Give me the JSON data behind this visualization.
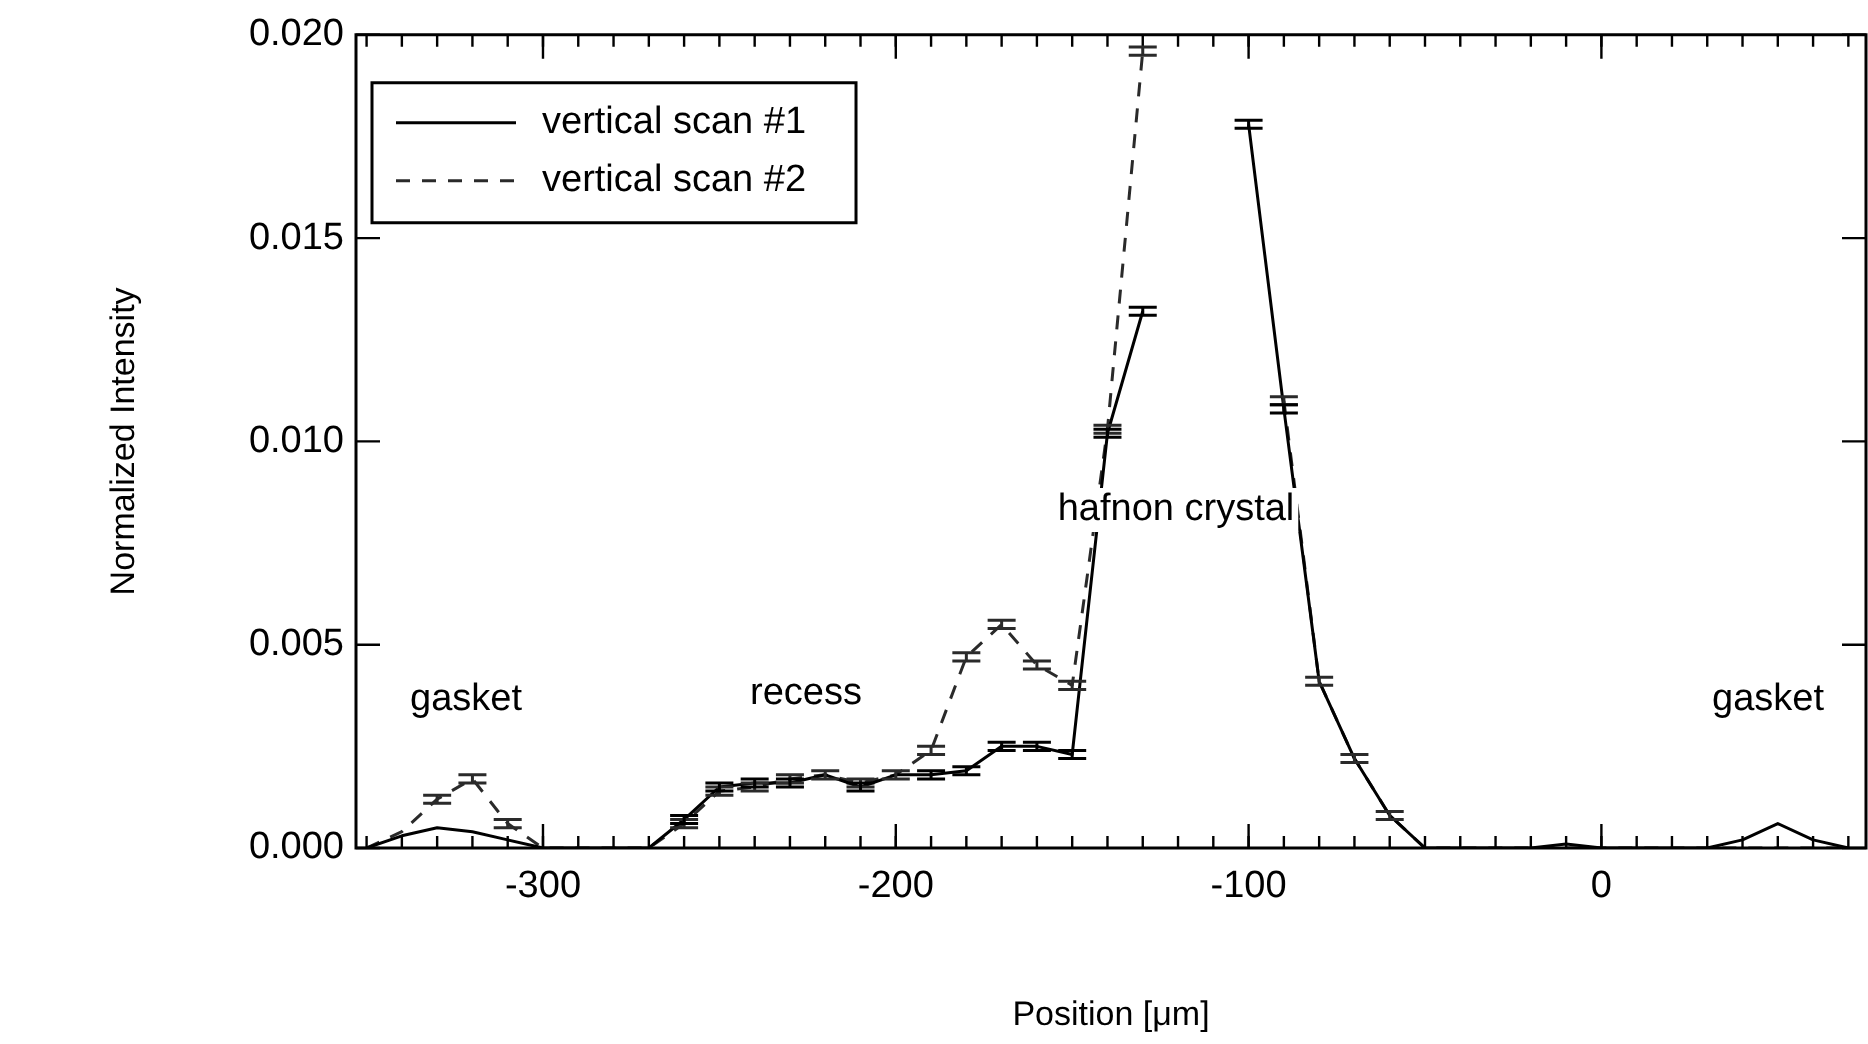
{
  "chart_data": {
    "type": "line",
    "xlabel": "Position [μm]",
    "ylabel": "Normalized Intensity",
    "x": [
      -350,
      -340,
      -330,
      -320,
      -310,
      -300,
      -290,
      -280,
      -270,
      -260,
      -250,
      -240,
      -230,
      -220,
      -210,
      -200,
      -190,
      -180,
      -170,
      -160,
      -150,
      -140,
      -130,
      -120,
      -110,
      -100,
      -90,
      -80,
      -70,
      -60,
      -50,
      -40,
      -30,
      -20,
      -10,
      0,
      10,
      20,
      30,
      40,
      50,
      60,
      70
    ],
    "series": [
      {
        "name": "vertical scan #1",
        "color": "#000000",
        "line_style": "solid",
        "values": [
          0,
          0.0003,
          0.0005,
          0.0004,
          0.0002,
          0,
          0,
          0,
          0,
          0.0007,
          0.0015,
          0.0016,
          0.0016,
          0.0018,
          0.0015,
          0.0018,
          0.0018,
          0.0019,
          0.0025,
          0.0025,
          0.0023,
          0.0102,
          0.0132,
          null,
          null,
          0.0178,
          0.0108,
          0.0041,
          0.0022,
          0.0008,
          0,
          0,
          0,
          0,
          0.0001,
          0,
          0,
          0,
          0,
          0.0002,
          0.0006,
          0.0002,
          0
        ],
        "errors": [
          null,
          null,
          null,
          null,
          null,
          null,
          null,
          null,
          null,
          0.0001,
          0.0001,
          0.0001,
          0.0001,
          null,
          0.0001,
          null,
          0.0001,
          0.0001,
          0.0001,
          0.0001,
          0.0001,
          0.0001,
          0.0001,
          null,
          null,
          0.0001,
          0.0001,
          null,
          null,
          null,
          null,
          null,
          null,
          null,
          null,
          null,
          null,
          null,
          null,
          null,
          null,
          null,
          null
        ]
      },
      {
        "name": "vertical scan #2",
        "color": "#2a2a2a",
        "line_style": "dashed",
        "values": [
          0,
          0.0004,
          0.0012,
          0.0017,
          0.0006,
          0,
          0,
          0,
          0,
          0.0006,
          0.0014,
          0.0015,
          0.0017,
          0.0018,
          0.0016,
          0.0018,
          0.0024,
          0.0047,
          0.0055,
          0.0045,
          0.004,
          0.0103,
          0.0196,
          null,
          null,
          null,
          0.011,
          0.0041,
          0.0022,
          0.0008,
          0,
          0,
          0,
          0,
          0,
          0,
          0,
          0,
          0,
          0,
          0,
          0,
          0
        ],
        "errors": [
          null,
          null,
          0.0001,
          0.0001,
          0.0001,
          null,
          null,
          null,
          null,
          0.0001,
          0.0001,
          0.0001,
          0.0001,
          0.0001,
          0.0001,
          0.0001,
          0.0001,
          0.0001,
          0.0001,
          0.0001,
          0.0001,
          0.0001,
          0.0001,
          null,
          null,
          null,
          0.0001,
          0.0001,
          0.0001,
          0.0001,
          null,
          null,
          null,
          null,
          null,
          null,
          null,
          null,
          null,
          null,
          null,
          null,
          null
        ]
      }
    ],
    "xlim": [
      -353,
      75
    ],
    "xticks": [
      -300,
      -200,
      -100,
      0
    ],
    "ylim": [
      0,
      0.02
    ],
    "yticks": [
      {
        "value": 0,
        "label": "0.000"
      },
      {
        "value": 0.005,
        "label": "0.005"
      },
      {
        "value": 0.01,
        "label": "0.010"
      },
      {
        "value": 0.015,
        "label": "0.015"
      },
      {
        "value": 0.02,
        "label": "0.020"
      }
    ],
    "annotations": [
      "gasket",
      "recess",
      "hafnon crystal",
      "gasket"
    ],
    "legend": "top left",
    "grid": false,
    "marker": "none"
  }
}
